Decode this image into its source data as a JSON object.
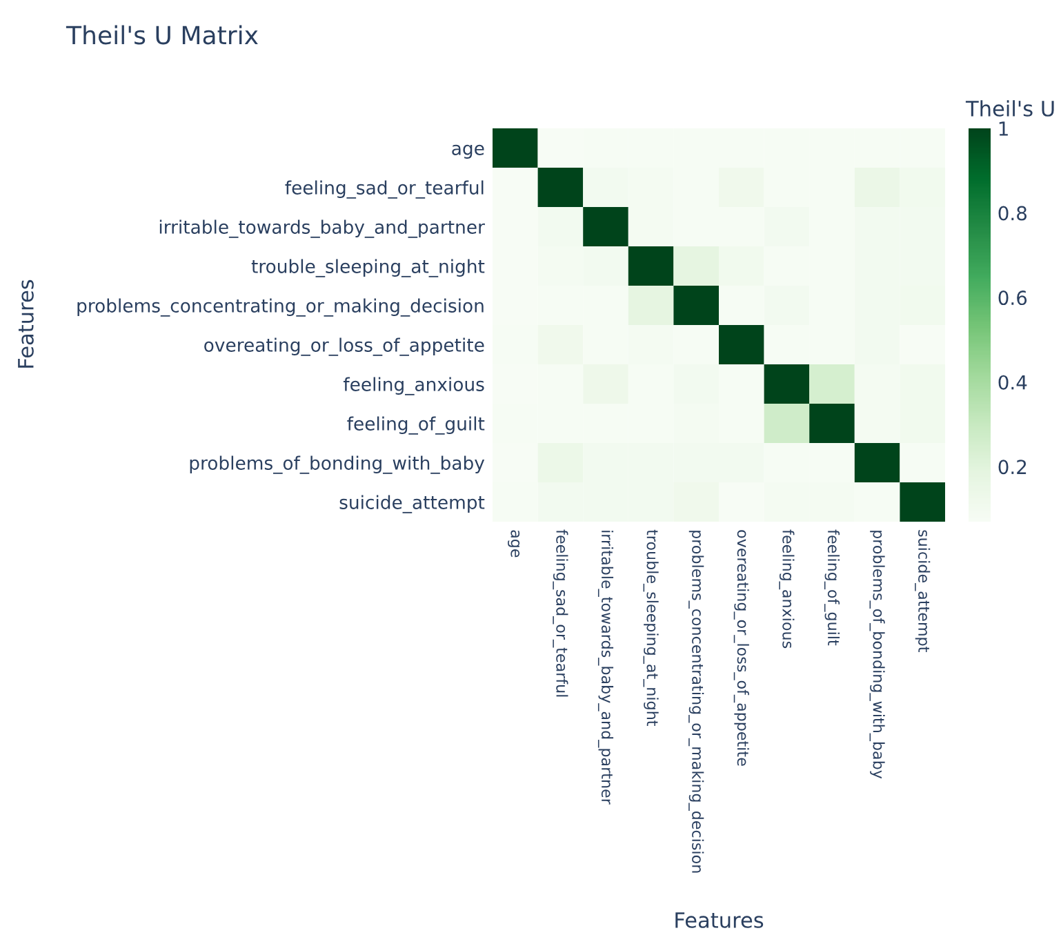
{
  "chart_data": {
    "type": "heatmap",
    "title": "Theil's U Matrix",
    "xlabel": "Features",
    "ylabel": "Features",
    "clabel": "Theil's U",
    "categories": [
      "age",
      "feeling_sad_or_tearful",
      "irritable_towards_baby_and_partner",
      "trouble_sleeping_at_night",
      "problems_concentrating_or_making_decision",
      "overeating_or_loss_of_appetite",
      "feeling_anxious",
      "feeling_of_guilt",
      "problems_of_bonding_with_baby",
      "suicide_attempt"
    ],
    "y_categories": [
      "age",
      "feeling_sad_or_tearful",
      "irritable_towards_baby_and_partner",
      "trouble_sleeping_at_night",
      "problems_concentrating_or_making_decision",
      "overeating_or_loss_of_appetite",
      "feeling_anxious",
      "feeling_of_guilt",
      "problems_of_bonding_with_baby",
      "suicide_attempt"
    ],
    "cells": [
      [
        1,
        0.07,
        0.08,
        0.08,
        0.08,
        0.08,
        0.08,
        0.08,
        0.08,
        0.08
      ],
      [
        0.07,
        1,
        0.1,
        0.09,
        0.08,
        0.12,
        0.08,
        0.08,
        0.15,
        0.11
      ],
      [
        0.07,
        0.1,
        1,
        0.09,
        0.08,
        0.08,
        0.1,
        0.08,
        0.1,
        0.1
      ],
      [
        0.07,
        0.09,
        0.1,
        1,
        0.18,
        0.11,
        0.08,
        0.08,
        0.1,
        0.1
      ],
      [
        0.07,
        0.08,
        0.08,
        0.18,
        1,
        0.08,
        0.1,
        0.08,
        0.1,
        0.11
      ],
      [
        0.08,
        0.12,
        0.08,
        0.09,
        0.08,
        1,
        0.08,
        0.08,
        0.1,
        0.07
      ],
      [
        0.07,
        0.08,
        0.13,
        0.08,
        0.1,
        0.08,
        1,
        0.25,
        0.09,
        0.11
      ],
      [
        0.08,
        0.08,
        0.08,
        0.08,
        0.09,
        0.08,
        0.27,
        1,
        0.09,
        0.11
      ],
      [
        0.07,
        0.14,
        0.1,
        0.1,
        0.1,
        0.1,
        0.08,
        0.08,
        1,
        0.08
      ],
      [
        0.08,
        0.1,
        0.1,
        0.1,
        0.12,
        0.07,
        0.09,
        0.09,
        0.08,
        1
      ]
    ],
    "clim": [
      0.07,
      1
    ],
    "cticks": [
      0.2,
      0.4,
      0.6,
      0.8,
      1
    ]
  }
}
